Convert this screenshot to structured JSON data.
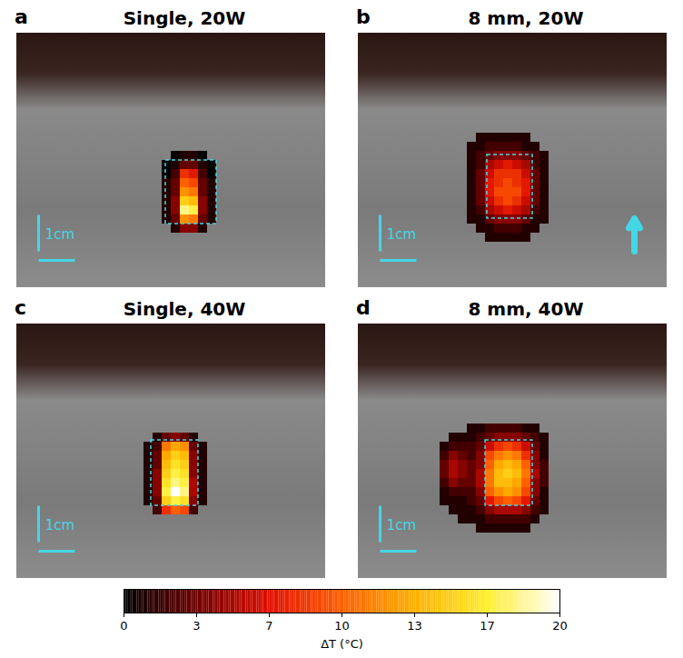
{
  "chart_data": {
    "type": "heatmap",
    "tick_labels": false,
    "panels": [
      {
        "label": "a",
        "title": "Single, 20W",
        "xlim": [
          0,
          8.5
        ],
        "ylim": [
          0,
          7
        ],
        "scale_bar": {
          "label": "1cm",
          "length": 1
        },
        "target_box": {
          "x": [
            4.1,
            5.5
          ],
          "y": [
            3.5,
            5.25
          ]
        },
        "heatmap": {
          "cell_size": 0.25,
          "x": [
            4.125,
            4.375,
            4.625,
            4.875,
            5.125,
            5.375
          ],
          "y": [
            3.375,
            3.625,
            3.875,
            4.125,
            4.375,
            4.625,
            4.875,
            5.125,
            5.375
          ],
          "values": [
            [
              null,
              0,
              1,
              1,
              0,
              null
            ],
            [
              0,
              1,
              3,
              3,
              1,
              0
            ],
            [
              0,
              2,
              8,
              7,
              2,
              0
            ],
            [
              1,
              3,
              10,
              9,
              3,
              1
            ],
            [
              1,
              3,
              12,
              11,
              3,
              1
            ],
            [
              1,
              4,
              15,
              14,
              4,
              1
            ],
            [
              1,
              4,
              18,
              17,
              4,
              1
            ],
            [
              1,
              3,
              12,
              11,
              3,
              1
            ],
            [
              null,
              1,
              4,
              4,
              1,
              null
            ]
          ]
        }
      },
      {
        "label": "b",
        "title": "8 mm, 20W",
        "xlim": [
          0,
          8.5
        ],
        "ylim": [
          0,
          7
        ],
        "scale_bar": {
          "label": "1cm",
          "length": 1
        },
        "target_box": {
          "x": [
            3.55,
            4.8
          ],
          "y": [
            3.35,
            5.1
          ]
        },
        "arrow": {
          "x": 7.6,
          "y": [
            6.0,
            5.1
          ]
        },
        "heatmap": {
          "cell_size": 0.25,
          "x": [
            3.125,
            3.375,
            3.625,
            3.875,
            4.125,
            4.375,
            4.625,
            4.875,
            5.125
          ],
          "y": [
            2.875,
            3.125,
            3.375,
            3.625,
            3.875,
            4.125,
            4.375,
            4.625,
            4.875,
            5.125,
            5.375,
            5.625
          ],
          "values": [
            [
              null,
              1,
              1,
              1,
              1,
              1,
              1,
              null,
              null
            ],
            [
              1,
              1,
              2,
              2,
              2,
              2,
              1,
              1,
              null
            ],
            [
              1,
              2,
              3,
              4,
              4,
              4,
              3,
              2,
              1
            ],
            [
              1,
              2,
              5,
              6,
              7,
              6,
              5,
              2,
              1
            ],
            [
              1,
              3,
              6,
              8,
              8,
              8,
              6,
              3,
              1
            ],
            [
              1,
              3,
              7,
              8,
              9,
              8,
              7,
              3,
              1
            ],
            [
              1,
              3,
              7,
              9,
              9,
              9,
              7,
              3,
              1
            ],
            [
              1,
              3,
              6,
              8,
              9,
              8,
              6,
              3,
              1
            ],
            [
              1,
              2,
              5,
              6,
              7,
              6,
              5,
              2,
              1
            ],
            [
              1,
              1,
              3,
              4,
              4,
              4,
              3,
              1,
              1
            ],
            [
              null,
              1,
              1,
              2,
              2,
              2,
              1,
              1,
              null
            ],
            [
              null,
              null,
              1,
              1,
              1,
              1,
              1,
              null,
              null
            ]
          ]
        }
      },
      {
        "label": "c",
        "title": "Single, 40W",
        "xlim": [
          0,
          8.5
        ],
        "ylim": [
          0,
          7
        ],
        "scale_bar": {
          "label": "1cm",
          "length": 1
        },
        "target_box": {
          "x": [
            3.7,
            5.0
          ],
          "y": [
            3.2,
            5.0
          ]
        },
        "heatmap": {
          "cell_size": 0.25,
          "x": [
            3.625,
            3.875,
            4.125,
            4.375,
            4.625,
            4.875,
            5.125
          ],
          "y": [
            3.125,
            3.375,
            3.625,
            3.875,
            4.125,
            4.375,
            4.625,
            4.875,
            5.125
          ],
          "values": [
            [
              null,
              1,
              3,
              4,
              3,
              1,
              null
            ],
            [
              1,
              2,
              11,
              13,
              12,
              3,
              1
            ],
            [
              1,
              3,
              13,
              15,
              14,
              4,
              1
            ],
            [
              1,
              3,
              14,
              16,
              15,
              4,
              1
            ],
            [
              1,
              4,
              15,
              17,
              16,
              4,
              1
            ],
            [
              1,
              4,
              16,
              18,
              17,
              5,
              1
            ],
            [
              1,
              4,
              17,
              20,
              18,
              5,
              1
            ],
            [
              1,
              3,
              15,
              17,
              16,
              4,
              1
            ],
            [
              null,
              2,
              8,
              10,
              9,
              2,
              null
            ]
          ]
        }
      },
      {
        "label": "d",
        "title": "8 mm, 40W",
        "xlim": [
          0,
          8.5
        ],
        "ylim": [
          0,
          7
        ],
        "scale_bar": {
          "label": "1cm",
          "length": 1
        },
        "target_box": {
          "x": [
            3.5,
            4.8
          ],
          "y": [
            3.2,
            5.0
          ]
        },
        "heatmap": {
          "cell_size": 0.25,
          "x": [
            2.375,
            2.625,
            2.875,
            3.125,
            3.375,
            3.625,
            3.875,
            4.125,
            4.375,
            4.625,
            4.875,
            5.125
          ],
          "y": [
            2.875,
            3.125,
            3.375,
            3.625,
            3.875,
            4.125,
            4.375,
            4.625,
            4.875,
            5.125,
            5.375,
            5.625
          ],
          "values": [
            [
              null,
              null,
              null,
              1,
              1,
              2,
              2,
              2,
              2,
              1,
              1,
              null
            ],
            [
              null,
              1,
              1,
              1,
              2,
              3,
              4,
              4,
              4,
              3,
              2,
              1
            ],
            [
              1,
              2,
              2,
              2,
              3,
              6,
              8,
              9,
              8,
              6,
              3,
              1
            ],
            [
              2,
              4,
              3,
              2,
              4,
              9,
              11,
              12,
              11,
              8,
              4,
              1
            ],
            [
              3,
              5,
              4,
              3,
              4,
              10,
              13,
              14,
              13,
              10,
              4,
              2
            ],
            [
              3,
              5,
              4,
              3,
              5,
              11,
              14,
              15,
              14,
              11,
              5,
              2
            ],
            [
              2,
              4,
              3,
              3,
              5,
              11,
              14,
              14,
              13,
              10,
              4,
              2
            ],
            [
              1,
              2,
              2,
              2,
              4,
              10,
              12,
              13,
              12,
              9,
              4,
              1
            ],
            [
              1,
              1,
              1,
              2,
              3,
              7,
              9,
              10,
              9,
              7,
              3,
              1
            ],
            [
              null,
              1,
              1,
              1,
              2,
              4,
              5,
              5,
              5,
              4,
              2,
              1
            ],
            [
              null,
              null,
              1,
              1,
              1,
              2,
              2,
              2,
              2,
              2,
              1,
              null
            ],
            [
              null,
              null,
              null,
              null,
              1,
              1,
              1,
              1,
              1,
              1,
              null,
              null
            ]
          ]
        }
      }
    ],
    "colorbar": {
      "label": "ΔT (°C)",
      "range": [
        0,
        20
      ],
      "ticks": [
        0,
        {
          "value": 3.333,
          "label": "3"
        },
        {
          "value": 6.667,
          "label": "7"
        },
        10,
        {
          "value": 13.333,
          "label": "13"
        },
        {
          "value": 16.667,
          "label": "17"
        },
        20
      ]
    }
  }
}
